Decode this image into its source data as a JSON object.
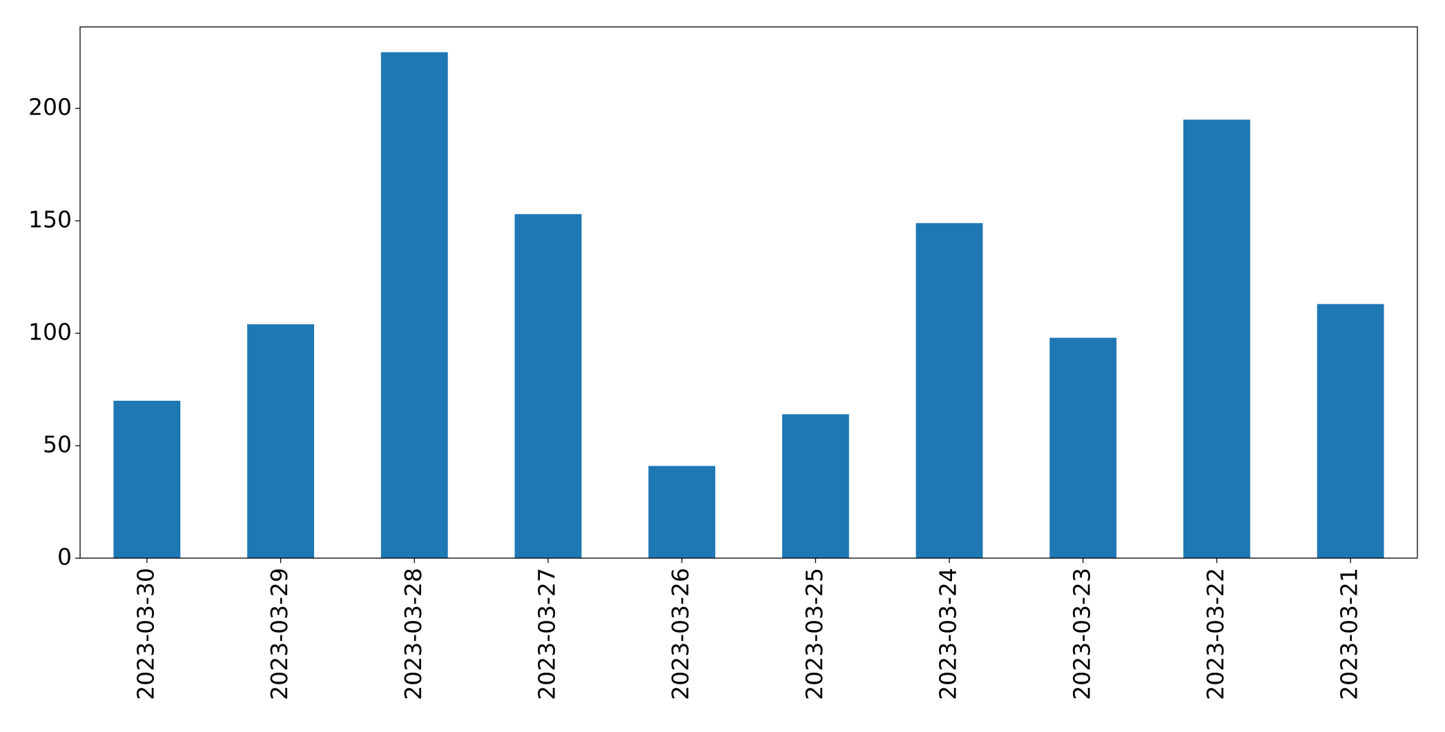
{
  "chart_data": {
    "type": "bar",
    "categories": [
      "2023-03-30",
      "2023-03-29",
      "2023-03-28",
      "2023-03-27",
      "2023-03-26",
      "2023-03-25",
      "2023-03-24",
      "2023-03-23",
      "2023-03-22",
      "2023-03-21"
    ],
    "values": [
      70,
      104,
      225,
      153,
      41,
      64,
      149,
      98,
      195,
      113
    ],
    "color": "#1f77b4",
    "ylim": [
      0,
      236.25
    ],
    "yticks": [
      0,
      50,
      100,
      150,
      200
    ],
    "grid": false
  }
}
